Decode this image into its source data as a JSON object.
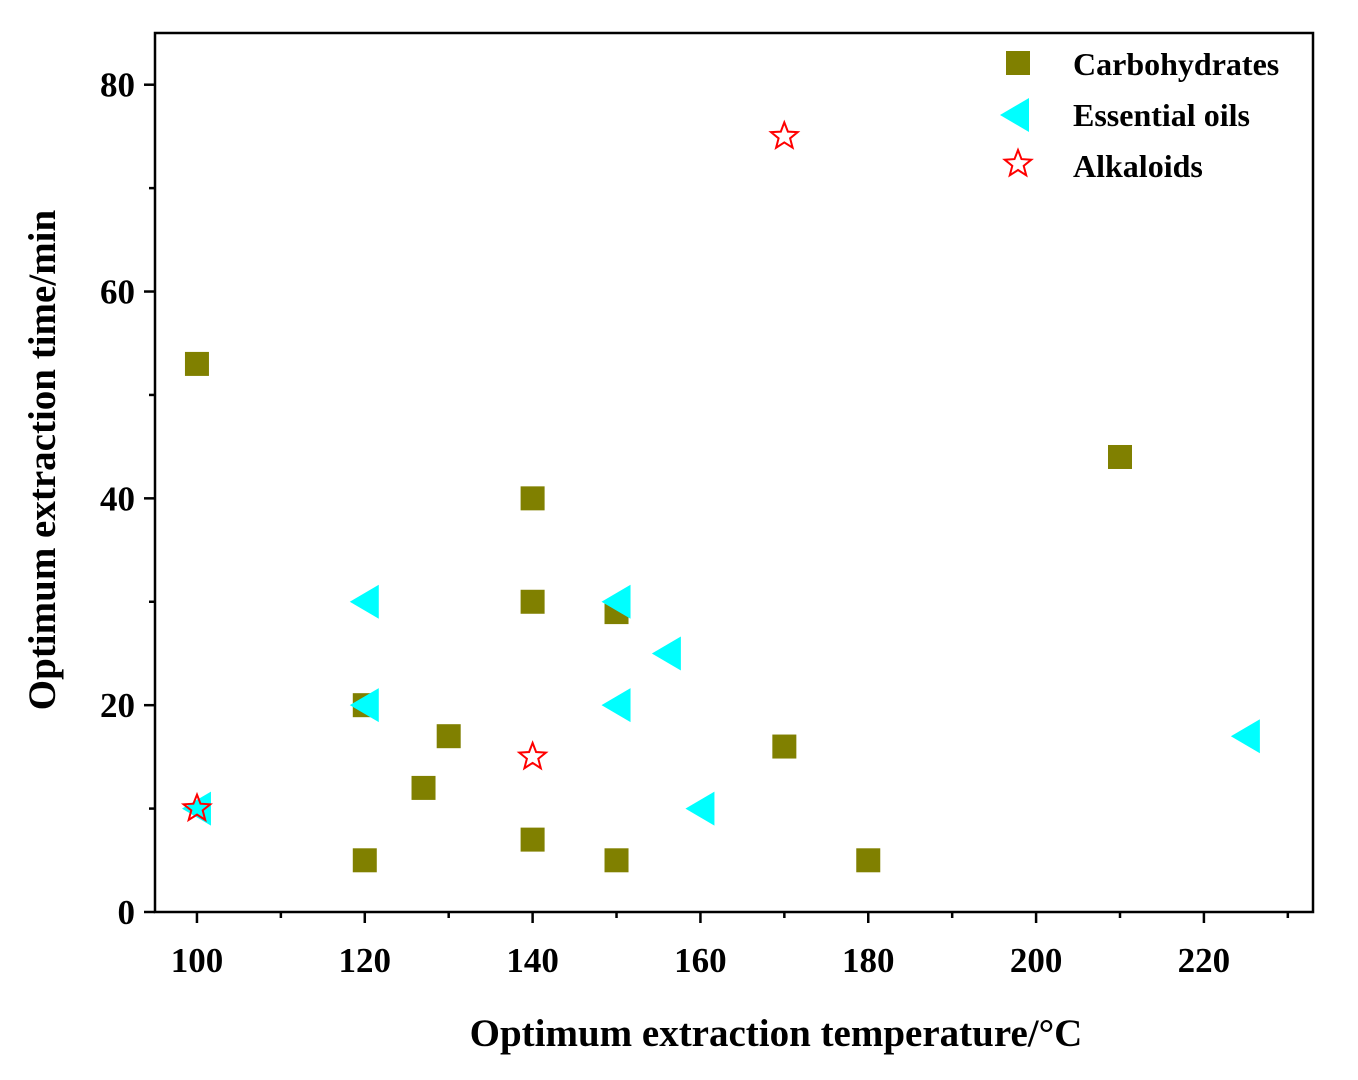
{
  "chart_data": {
    "type": "scatter",
    "title": "",
    "xlabel": "Optimum extraction temperature/°C",
    "ylabel": "Optimum extraction time/min",
    "xlim": [
      95,
      233
    ],
    "ylim": [
      0,
      85
    ],
    "x_ticks": [
      100,
      120,
      140,
      160,
      180,
      200,
      220
    ],
    "y_ticks": [
      0,
      20,
      40,
      60,
      80
    ],
    "x_tick_labels": [
      "100",
      "120",
      "140",
      "160",
      "180",
      "200",
      "220"
    ],
    "y_tick_labels": [
      "0",
      "20",
      "40",
      "60",
      "80"
    ],
    "x_minor_step": 10,
    "y_minor_step": 10,
    "grid": false,
    "legend_position": "top-right",
    "series": [
      {
        "name": "Carbohydrates",
        "marker": "square",
        "color": "#808000",
        "points": [
          [
            100,
            53
          ],
          [
            120,
            20
          ],
          [
            120,
            5
          ],
          [
            127,
            12
          ],
          [
            130,
            17
          ],
          [
            140,
            40
          ],
          [
            140,
            30
          ],
          [
            140,
            7
          ],
          [
            150,
            29
          ],
          [
            150,
            5
          ],
          [
            170,
            16
          ],
          [
            180,
            5
          ],
          [
            210,
            44
          ]
        ]
      },
      {
        "name": "Essential oils",
        "marker": "triangle-left",
        "color": "#00FFFF",
        "points": [
          [
            100,
            10
          ],
          [
            120,
            30
          ],
          [
            120,
            20
          ],
          [
            150,
            30
          ],
          [
            150,
            20
          ],
          [
            156,
            25
          ],
          [
            160,
            10
          ],
          [
            225,
            17
          ]
        ]
      },
      {
        "name": "Alkaloids",
        "marker": "star-open",
        "color": "#FF0000",
        "points": [
          [
            100,
            10
          ],
          [
            140,
            15
          ],
          [
            170,
            75
          ]
        ]
      }
    ]
  }
}
